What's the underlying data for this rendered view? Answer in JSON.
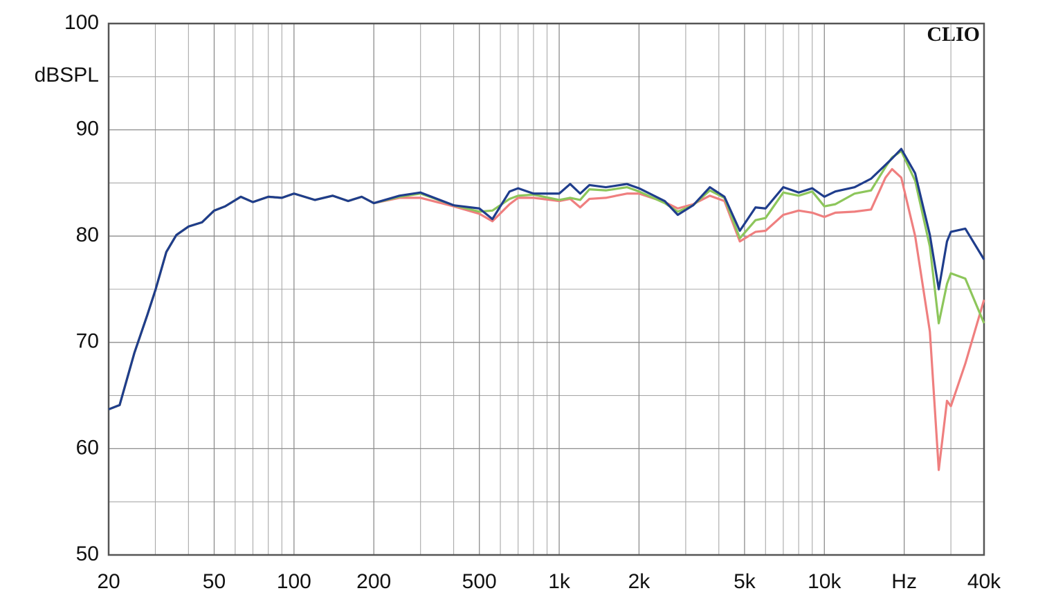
{
  "chart_data": {
    "type": "line",
    "x_scale": "log",
    "grid": true,
    "y_label": "dBSPL",
    "annotation": "CLIO",
    "xlim": [
      20,
      40000
    ],
    "ylim": [
      50,
      100
    ],
    "xticks": [
      20,
      50,
      100,
      200,
      500,
      {
        "value": 1000,
        "label": "1k"
      },
      {
        "value": 2000,
        "label": "2k"
      },
      {
        "value": 5000,
        "label": "5k"
      },
      {
        "value": 10000,
        "label": "10k"
      },
      {
        "value": 20000,
        "label": "Hz"
      },
      {
        "value": 40000,
        "label": "40k"
      }
    ],
    "x_minor_ticks": [
      30,
      40,
      60,
      70,
      80,
      90,
      300,
      400,
      600,
      700,
      800,
      900,
      3000,
      4000,
      6000,
      7000,
      8000,
      9000,
      30000
    ],
    "yticks": [
      50,
      60,
      70,
      80,
      90,
      100
    ],
    "y_minor_ticks": [
      55,
      65,
      75,
      85,
      95
    ],
    "x": [
      20,
      22,
      25,
      28,
      30,
      33,
      36,
      40,
      45,
      50,
      55,
      63,
      70,
      80,
      90,
      100,
      120,
      140,
      160,
      180,
      200,
      250,
      300,
      400,
      500,
      560,
      650,
      700,
      800,
      1000,
      1100,
      1200,
      1300,
      1500,
      1800,
      2000,
      2500,
      2800,
      3200,
      3700,
      4200,
      4800,
      5500,
      6000,
      7000,
      8000,
      9000,
      10000,
      11000,
      13000,
      15000,
      17000,
      18000,
      19500,
      22000,
      25000,
      27000,
      29000,
      30000,
      34000,
      40000
    ],
    "series": [
      {
        "color": "#ef7f7f",
        "values": [
          63.7,
          64.1,
          69.0,
          72.6,
          74.9,
          78.5,
          80.1,
          80.9,
          81.3,
          82.4,
          82.8,
          83.7,
          83.2,
          83.7,
          83.6,
          84.0,
          83.4,
          83.8,
          83.3,
          83.7,
          83.1,
          83.6,
          83.6,
          82.8,
          82.1,
          81.4,
          83.0,
          83.6,
          83.6,
          83.3,
          83.5,
          82.7,
          83.5,
          83.6,
          84.0,
          84.0,
          83.2,
          82.6,
          83.0,
          83.8,
          83.3,
          79.5,
          80.4,
          80.5,
          82.0,
          82.4,
          82.2,
          81.8,
          82.2,
          82.3,
          82.5,
          85.5,
          86.3,
          85.5,
          80.0,
          71.0,
          58.0,
          64.5,
          64.0,
          68.0,
          74.0
        ]
      },
      {
        "color": "#8dc65b",
        "values": [
          63.7,
          64.1,
          69.0,
          72.6,
          74.9,
          78.5,
          80.1,
          80.9,
          81.3,
          82.4,
          82.8,
          83.7,
          83.2,
          83.7,
          83.6,
          84.0,
          83.4,
          83.8,
          83.3,
          83.7,
          83.1,
          83.7,
          84.0,
          82.9,
          82.3,
          82.4,
          83.5,
          83.8,
          83.9,
          83.4,
          83.6,
          83.4,
          84.4,
          84.3,
          84.6,
          84.2,
          83.1,
          82.3,
          82.9,
          84.3,
          83.6,
          79.8,
          81.5,
          81.7,
          84.1,
          83.8,
          84.2,
          82.8,
          83.0,
          84.0,
          84.3,
          86.5,
          87.4,
          88.0,
          85.2,
          79.0,
          71.8,
          75.5,
          76.5,
          76.0,
          71.8
        ]
      },
      {
        "color": "#1f3d8c",
        "values": [
          63.7,
          64.1,
          69.0,
          72.6,
          74.9,
          78.5,
          80.1,
          80.9,
          81.3,
          82.4,
          82.8,
          83.7,
          83.2,
          83.7,
          83.6,
          84.0,
          83.4,
          83.8,
          83.3,
          83.7,
          83.1,
          83.8,
          84.1,
          82.9,
          82.6,
          81.6,
          84.2,
          84.5,
          84.0,
          84.0,
          84.9,
          84.0,
          84.8,
          84.6,
          84.9,
          84.5,
          83.3,
          82.0,
          82.9,
          84.6,
          83.7,
          80.5,
          82.7,
          82.6,
          84.6,
          84.1,
          84.5,
          83.7,
          84.2,
          84.6,
          85.4,
          86.7,
          87.3,
          88.2,
          85.9,
          80.1,
          75.0,
          79.5,
          80.4,
          80.7,
          77.8
        ]
      }
    ]
  }
}
